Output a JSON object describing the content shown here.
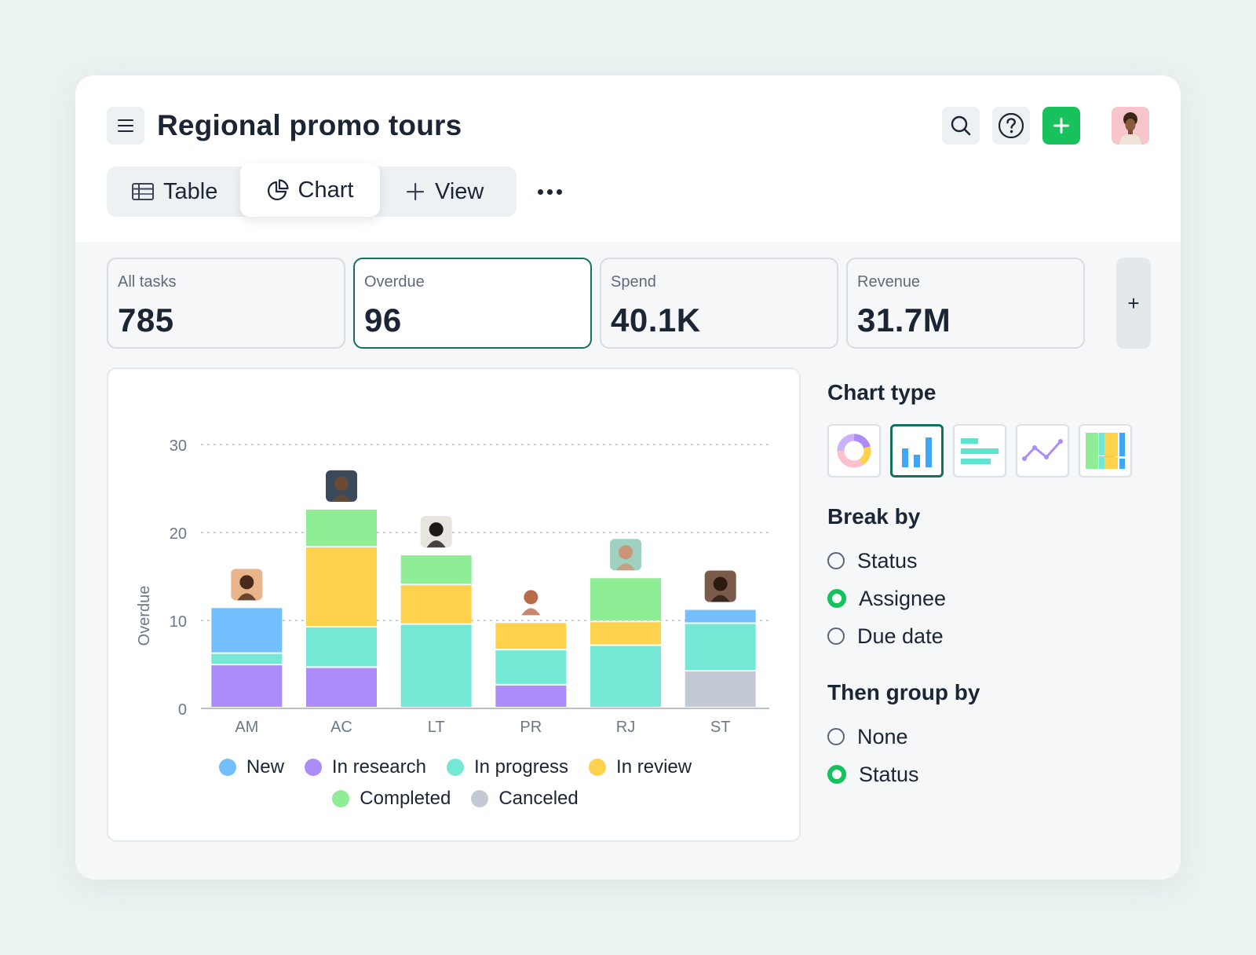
{
  "header": {
    "title": "Regional promo tours",
    "tabs": [
      {
        "label": "Table",
        "icon": "table-icon"
      },
      {
        "label": "Chart",
        "icon": "pie-chart-icon",
        "active": true
      },
      {
        "label": "View",
        "icon": "plus-icon"
      }
    ],
    "actions": [
      "search-icon",
      "help-icon",
      "add-icon",
      "user-avatar"
    ],
    "colors": {
      "add": "#17c25d",
      "accent": "#13705f"
    }
  },
  "stats": [
    {
      "label": "All tasks",
      "value": "785"
    },
    {
      "label": "Overdue",
      "value": "96",
      "active": true
    },
    {
      "label": "Spend",
      "value": "40.1K"
    },
    {
      "label": "Revenue",
      "value": "31.7M"
    }
  ],
  "stats_add": "+",
  "chart_data": {
    "type": "bar",
    "stacked": true,
    "title": "",
    "xlabel": "",
    "ylabel": "Overdue",
    "ylim": [
      0,
      30
    ],
    "yticks": [
      0,
      10,
      20,
      30
    ],
    "grid": true,
    "legend_position": "bottom",
    "categories": [
      "AM",
      "AC",
      "LT",
      "PR",
      "RJ",
      "ST"
    ],
    "series": [
      {
        "name": "Canceled",
        "color": "#c4c9d6",
        "values": [
          0,
          0,
          0,
          0,
          0,
          4.2
        ]
      },
      {
        "name": "In research",
        "color": "#ac8cf8",
        "values": [
          4.9,
          4.6,
          0,
          2.6,
          0,
          0
        ]
      },
      {
        "name": "In progress",
        "color": "#74e8d4",
        "values": [
          1.3,
          4.6,
          9.5,
          4.0,
          7.1,
          5.4
        ]
      },
      {
        "name": "In review",
        "color": "#ffd24d",
        "values": [
          0,
          9.1,
          4.5,
          3.1,
          2.7,
          0
        ]
      },
      {
        "name": "Completed",
        "color": "#8eed95",
        "values": [
          0,
          4.3,
          3.4,
          0,
          5.0,
          0
        ]
      },
      {
        "name": "New",
        "color": "#73befc",
        "values": [
          5.2,
          0,
          0,
          0,
          0,
          1.6
        ]
      }
    ]
  },
  "legend": [
    {
      "name": "New",
      "color": "#73befc"
    },
    {
      "name": "In research",
      "color": "#ac8cf8"
    },
    {
      "name": "In progress",
      "color": "#74e8d4"
    },
    {
      "name": "In review",
      "color": "#ffd24d"
    },
    {
      "name": "Completed",
      "color": "#8eed95"
    },
    {
      "name": "Canceled",
      "color": "#c4c9d6"
    }
  ],
  "sidebar": {
    "chart_type_title": "Chart type",
    "chart_types": [
      {
        "name": "donut-chart-icon"
      },
      {
        "name": "bar-chart-icon",
        "active": true
      },
      {
        "name": "horizontal-bar-chart-icon"
      },
      {
        "name": "line-chart-icon"
      },
      {
        "name": "treemap-chart-icon"
      }
    ],
    "break_by_title": "Break by",
    "break_by": [
      {
        "label": "Status",
        "selected": false
      },
      {
        "label": "Assignee",
        "selected": true
      },
      {
        "label": "Due date",
        "selected": false
      }
    ],
    "group_by_title": "Then group by",
    "group_by": [
      {
        "label": "None",
        "selected": false
      },
      {
        "label": "Status",
        "selected": true
      }
    ]
  }
}
